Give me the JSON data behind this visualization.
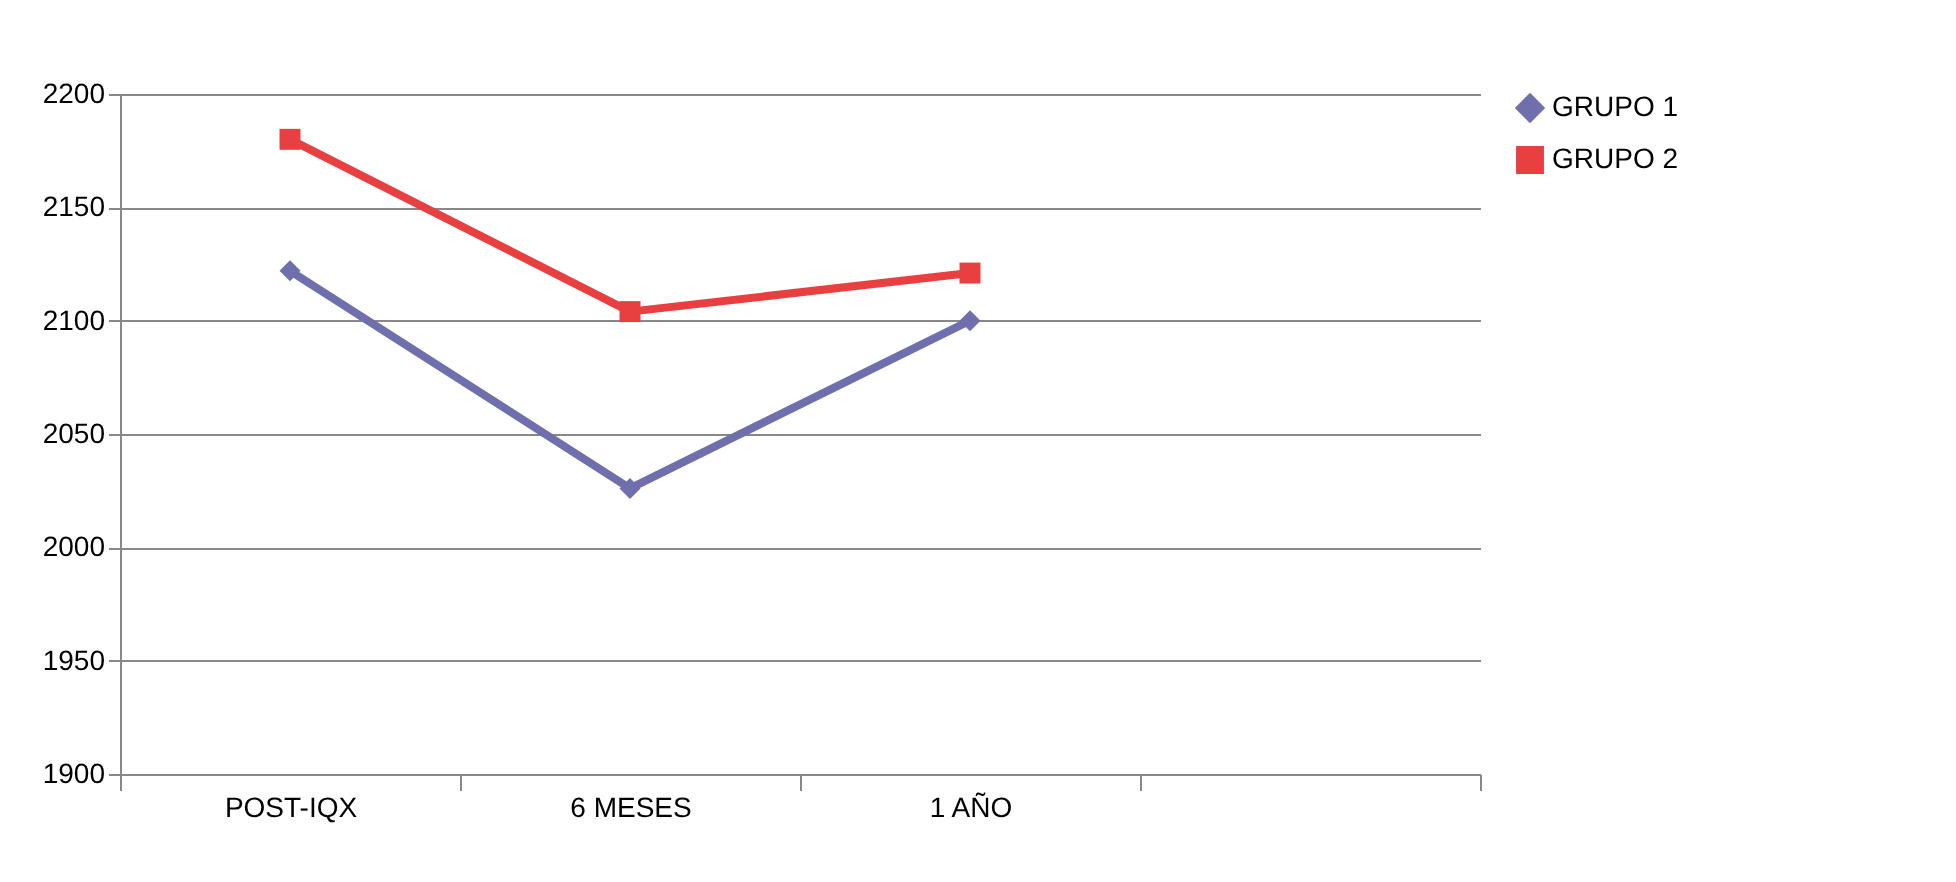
{
  "chart_data": {
    "type": "line",
    "categories": [
      "POST-IQX",
      "6 MESES",
      "1 AÑO",
      null
    ],
    "series": [
      {
        "name": "GRUPO 1",
        "color": "#6f6fad",
        "marker": "diamond",
        "values": [
          2122,
          2026,
          2100,
          null
        ]
      },
      {
        "name": "GRUPO 2",
        "color": "#e84040",
        "marker": "square",
        "values": [
          2180,
          2104,
          2121,
          null
        ]
      }
    ],
    "ylim": [
      1900,
      2200
    ],
    "yticks": [
      1900,
      1950,
      2000,
      2050,
      2100,
      2150,
      2200
    ],
    "grid": "y",
    "legend": "right"
  }
}
